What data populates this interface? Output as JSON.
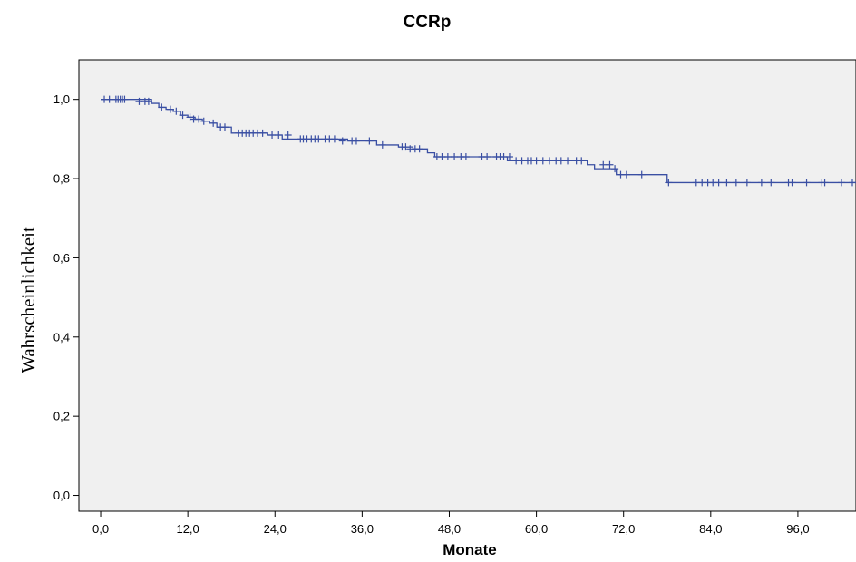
{
  "chart_data": {
    "type": "line",
    "title": "CCRp",
    "xlabel": "Monate",
    "ylabel": "Wahrscheinlichkeit",
    "xlim": [
      -3,
      104
    ],
    "ylim": [
      -0.04,
      1.1
    ],
    "x_ticks": [
      0,
      12,
      24,
      36,
      48,
      60,
      72,
      84,
      96
    ],
    "x_tick_labels": [
      "0,0",
      "12,0",
      "24,0",
      "36,0",
      "48,0",
      "60,0",
      "72,0",
      "84,0",
      "96,0"
    ],
    "y_ticks": [
      0,
      0.2,
      0.4,
      0.6,
      0.8,
      1.0
    ],
    "y_tick_labels": [
      "0,0",
      "0,2",
      "0,4",
      "0,6",
      "0,8",
      "1,0"
    ],
    "grid": false,
    "colors": {
      "plot_background": "#f0f0f0",
      "line": "#3a4fa3"
    },
    "series": [
      {
        "steps": [
          [
            0,
            1.0
          ],
          [
            4,
            1.0
          ],
          [
            7,
            0.99
          ],
          [
            8,
            0.98
          ],
          [
            9,
            0.975
          ],
          [
            10,
            0.97
          ],
          [
            11,
            0.96
          ],
          [
            12,
            0.955
          ],
          [
            13,
            0.95
          ],
          [
            14,
            0.945
          ],
          [
            15,
            0.94
          ],
          [
            16,
            0.93
          ],
          [
            18,
            0.915
          ],
          [
            23,
            0.91
          ],
          [
            25,
            0.9
          ],
          [
            32,
            0.9
          ],
          [
            34,
            0.895
          ],
          [
            38,
            0.885
          ],
          [
            41,
            0.88
          ],
          [
            43,
            0.875
          ],
          [
            45,
            0.865
          ],
          [
            46,
            0.855
          ],
          [
            51,
            0.855
          ],
          [
            56,
            0.845
          ],
          [
            67,
            0.835
          ],
          [
            68,
            0.825
          ],
          [
            71,
            0.81
          ],
          [
            78,
            0.79
          ],
          [
            104,
            0.79
          ]
        ],
        "censors": [
          [
            0.5,
            1.0
          ],
          [
            1.2,
            1.0
          ],
          [
            2.1,
            1.0
          ],
          [
            2.4,
            1.0
          ],
          [
            2.7,
            1.0
          ],
          [
            3.0,
            1.0
          ],
          [
            3.3,
            1.0
          ],
          [
            5.3,
            0.995
          ],
          [
            6.1,
            0.995
          ],
          [
            6.6,
            0.995
          ],
          [
            8.4,
            0.98
          ],
          [
            9.6,
            0.975
          ],
          [
            10.4,
            0.97
          ],
          [
            11.3,
            0.96
          ],
          [
            12.3,
            0.955
          ],
          [
            12.8,
            0.95
          ],
          [
            13.5,
            0.95
          ],
          [
            14.2,
            0.945
          ],
          [
            15.5,
            0.94
          ],
          [
            16.5,
            0.93
          ],
          [
            17.1,
            0.93
          ],
          [
            19.0,
            0.915
          ],
          [
            19.5,
            0.915
          ],
          [
            20.0,
            0.915
          ],
          [
            20.5,
            0.915
          ],
          [
            21.0,
            0.915
          ],
          [
            21.6,
            0.915
          ],
          [
            22.3,
            0.915
          ],
          [
            23.6,
            0.91
          ],
          [
            24.5,
            0.91
          ],
          [
            25.8,
            0.91
          ],
          [
            27.5,
            0.9
          ],
          [
            27.9,
            0.9
          ],
          [
            28.4,
            0.9
          ],
          [
            29.0,
            0.9
          ],
          [
            29.5,
            0.9
          ],
          [
            30.0,
            0.9
          ],
          [
            30.9,
            0.9
          ],
          [
            31.5,
            0.9
          ],
          [
            32.2,
            0.9
          ],
          [
            33.3,
            0.895
          ],
          [
            34.6,
            0.895
          ],
          [
            35.2,
            0.895
          ],
          [
            37.0,
            0.895
          ],
          [
            38.8,
            0.885
          ],
          [
            41.5,
            0.88
          ],
          [
            42.0,
            0.88
          ],
          [
            42.6,
            0.875
          ],
          [
            43.3,
            0.875
          ],
          [
            43.9,
            0.875
          ],
          [
            46.3,
            0.855
          ],
          [
            47.0,
            0.855
          ],
          [
            47.8,
            0.855
          ],
          [
            48.7,
            0.855
          ],
          [
            49.6,
            0.855
          ],
          [
            50.3,
            0.855
          ],
          [
            52.5,
            0.855
          ],
          [
            53.2,
            0.855
          ],
          [
            54.5,
            0.855
          ],
          [
            55.0,
            0.855
          ],
          [
            55.5,
            0.855
          ],
          [
            56.3,
            0.855
          ],
          [
            57.2,
            0.845
          ],
          [
            58.0,
            0.845
          ],
          [
            58.8,
            0.845
          ],
          [
            59.3,
            0.845
          ],
          [
            60.0,
            0.845
          ],
          [
            60.9,
            0.845
          ],
          [
            61.8,
            0.845
          ],
          [
            62.7,
            0.845
          ],
          [
            63.4,
            0.845
          ],
          [
            64.3,
            0.845
          ],
          [
            65.5,
            0.845
          ],
          [
            66.2,
            0.845
          ],
          [
            69.2,
            0.835
          ],
          [
            70.1,
            0.835
          ],
          [
            70.8,
            0.825
          ],
          [
            71.6,
            0.81
          ],
          [
            72.4,
            0.81
          ],
          [
            74.5,
            0.81
          ],
          [
            78.2,
            0.79
          ],
          [
            82.0,
            0.79
          ],
          [
            82.8,
            0.79
          ],
          [
            83.6,
            0.79
          ],
          [
            84.3,
            0.79
          ],
          [
            85.1,
            0.79
          ],
          [
            86.2,
            0.79
          ],
          [
            87.5,
            0.79
          ],
          [
            89.0,
            0.79
          ],
          [
            91.0,
            0.79
          ],
          [
            92.3,
            0.79
          ],
          [
            94.7,
            0.79
          ],
          [
            95.2,
            0.79
          ],
          [
            97.2,
            0.79
          ],
          [
            99.3,
            0.79
          ],
          [
            99.7,
            0.79
          ],
          [
            102.0,
            0.79
          ],
          [
            103.5,
            0.79
          ]
        ]
      }
    ]
  }
}
